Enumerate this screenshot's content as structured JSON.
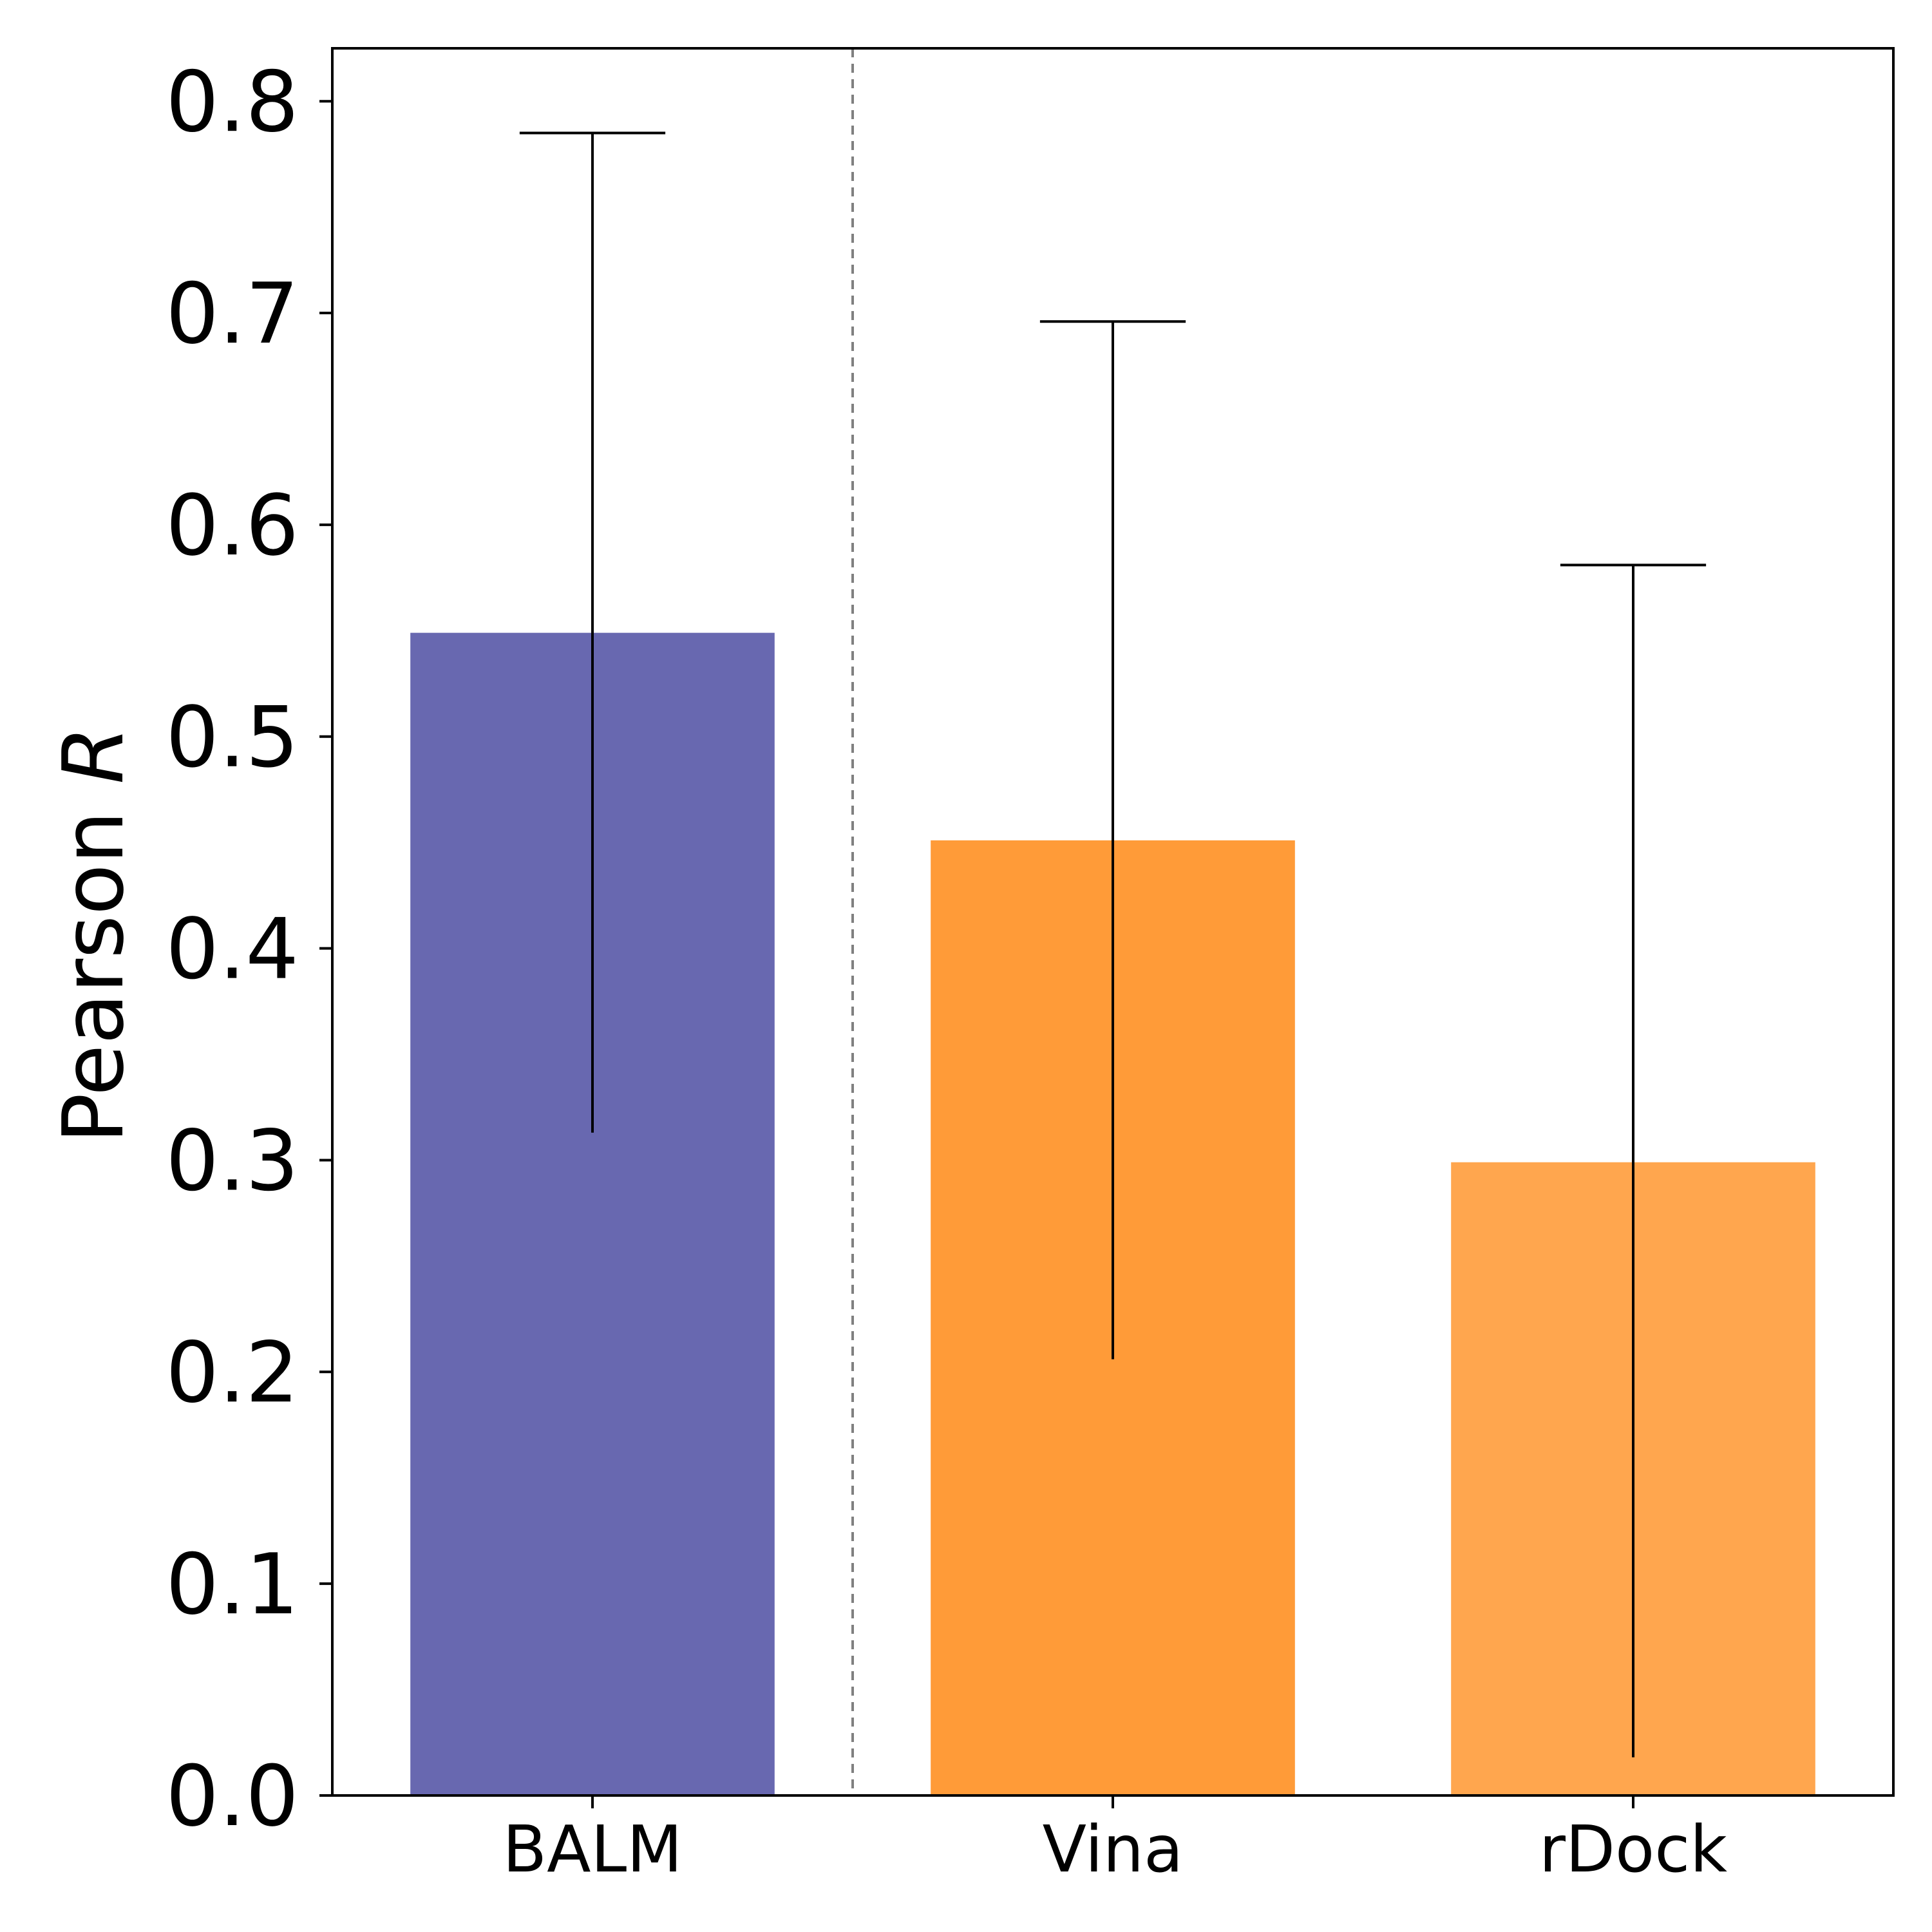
{
  "chart_data": {
    "type": "bar",
    "categories": [
      "BALM",
      "Vina",
      "rDock"
    ],
    "values": [
      0.549,
      0.451,
      0.299
    ],
    "error_low": [
      0.313,
      0.206,
      0.018
    ],
    "error_high": [
      0.785,
      0.696,
      0.581
    ],
    "colors": [
      "#6868b0",
      "#ff9b38",
      "#ffa64e"
    ],
    "ylabel_prefix": "Pearson ",
    "ylabel_symbol": "R",
    "ylim": [
      0,
      0.825
    ],
    "yticks": [
      0.0,
      0.1,
      0.2,
      0.3,
      0.4,
      0.5,
      0.6,
      0.7,
      0.8
    ],
    "ytick_labels": [
      "0.0",
      "0.1",
      "0.2",
      "0.3",
      "0.4",
      "0.5",
      "0.6",
      "0.7",
      "0.8"
    ],
    "grid": false,
    "separator_line": {
      "between": [
        "BALM",
        "Vina"
      ],
      "style": "dashed",
      "color": "#808080"
    }
  }
}
